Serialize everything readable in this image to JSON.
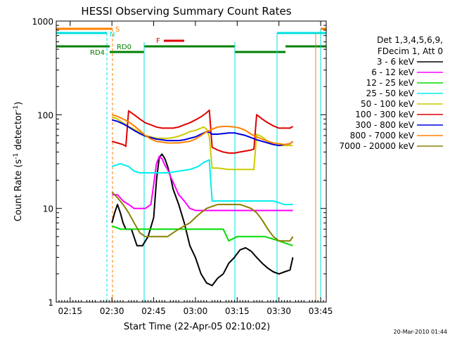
{
  "chart_data": {
    "type": "line",
    "title": "HESSI Observing Summary Count Rates",
    "xlabel": "Start Time (22-Apr-05 02:10:02)",
    "ylabel_main": "Count Rate (s",
    "ylabel_sup1": "-1",
    "ylabel_mid": " detector",
    "ylabel_sup2": "-1",
    "ylabel_end": ")",
    "yscale": "log",
    "ylim": [
      1,
      1000
    ],
    "xlim_minutes": [
      0,
      97
    ],
    "x_unit": "minutes after 02:10:02",
    "x_ticks": [
      {
        "label": "02:15",
        "t": 5
      },
      {
        "label": "02:30",
        "t": 20
      },
      {
        "label": "02:45",
        "t": 35
      },
      {
        "label": "03:00",
        "t": 50
      },
      {
        "label": "03:15",
        "t": 65
      },
      {
        "label": "03:30",
        "t": 80
      },
      {
        "label": "03:45",
        "t": 95
      }
    ],
    "y_ticks": [
      {
        "label": "1",
        "v": 1
      },
      {
        "label": "10",
        "v": 10
      },
      {
        "label": "100",
        "v": 100
      },
      {
        "label": "1000",
        "v": 1000
      }
    ],
    "legend": {
      "header": [
        "Det 1,3,4,5,6,9,",
        "FDecim 1, Att 0"
      ],
      "placement": "right"
    },
    "flags": [
      {
        "label": "S",
        "color": "#ff8000"
      },
      {
        "label": "N",
        "color": "#00e0e0"
      },
      {
        "label": "F",
        "color": "#e00000"
      },
      {
        "label": "RD0",
        "color": "#008000"
      },
      {
        "label": "RD4",
        "color": "#008000"
      }
    ],
    "series": [
      {
        "name": "3 - 6 keV",
        "color": "#000000",
        "points": [
          [
            20,
            7
          ],
          [
            21,
            9
          ],
          [
            22,
            11
          ],
          [
            23,
            9
          ],
          [
            24,
            7
          ],
          [
            25,
            6
          ],
          [
            27,
            6
          ],
          [
            29,
            4
          ],
          [
            31,
            4
          ],
          [
            33,
            5
          ],
          [
            35,
            8
          ],
          [
            36,
            20
          ],
          [
            37,
            35
          ],
          [
            38,
            38
          ],
          [
            39,
            34
          ],
          [
            40,
            28
          ],
          [
            41,
            22
          ],
          [
            42,
            16
          ],
          [
            44,
            11
          ],
          [
            46,
            7
          ],
          [
            48,
            4
          ],
          [
            50,
            3
          ],
          [
            52,
            2
          ],
          [
            54,
            1.6
          ],
          [
            56,
            1.5
          ],
          [
            58,
            1.8
          ],
          [
            60,
            2
          ],
          [
            62,
            2.6
          ],
          [
            64,
            3
          ],
          [
            66,
            3.6
          ],
          [
            68,
            3.8
          ],
          [
            70,
            3.5
          ],
          [
            72,
            3
          ],
          [
            74,
            2.6
          ],
          [
            76,
            2.3
          ],
          [
            78,
            2.1
          ],
          [
            80,
            2
          ],
          [
            82,
            2.1
          ],
          [
            84,
            2.2
          ],
          [
            85,
            3
          ]
        ]
      },
      {
        "name": "6 - 12 keV",
        "color": "#ff00ff",
        "points": [
          [
            20,
            14
          ],
          [
            22,
            14
          ],
          [
            24,
            12
          ],
          [
            26,
            11
          ],
          [
            28,
            10
          ],
          [
            30,
            10
          ],
          [
            32,
            10
          ],
          [
            34,
            11
          ],
          [
            35,
            18
          ],
          [
            36,
            30
          ],
          [
            37,
            36
          ],
          [
            38,
            34
          ],
          [
            39,
            29
          ],
          [
            40,
            26
          ],
          [
            41,
            22
          ],
          [
            42,
            19
          ],
          [
            44,
            14
          ],
          [
            46,
            12
          ],
          [
            48,
            10
          ],
          [
            50,
            9.5
          ],
          [
            55,
            9.5
          ],
          [
            60,
            9.5
          ],
          [
            65,
            9.5
          ],
          [
            70,
            9.5
          ],
          [
            75,
            9.5
          ],
          [
            80,
            9.5
          ],
          [
            85,
            9.5
          ]
        ]
      },
      {
        "name": "12 - 25 keV",
        "color": "#00dd00",
        "points": [
          [
            20,
            6.5
          ],
          [
            23,
            6
          ],
          [
            26,
            6
          ],
          [
            29,
            6
          ],
          [
            32,
            6
          ],
          [
            35,
            6
          ],
          [
            40,
            6
          ],
          [
            45,
            6
          ],
          [
            50,
            6
          ],
          [
            55,
            6
          ],
          [
            60,
            6
          ],
          [
            62,
            4.5
          ],
          [
            65,
            5
          ],
          [
            70,
            5
          ],
          [
            75,
            5
          ],
          [
            80,
            4.5
          ],
          [
            85,
            4
          ]
        ]
      },
      {
        "name": "25 - 50 keV",
        "color": "#00eeee",
        "points": [
          [
            20,
            28
          ],
          [
            23,
            30
          ],
          [
            26,
            28
          ],
          [
            28,
            25
          ],
          [
            30,
            24
          ],
          [
            33,
            24
          ],
          [
            36,
            24
          ],
          [
            40,
            24
          ],
          [
            44,
            25
          ],
          [
            48,
            26
          ],
          [
            51,
            28
          ],
          [
            53,
            31
          ],
          [
            55,
            33
          ],
          [
            56,
            12
          ],
          [
            58,
            12
          ],
          [
            62,
            12
          ],
          [
            66,
            12
          ],
          [
            70,
            12
          ],
          [
            74,
            12
          ],
          [
            78,
            12
          ],
          [
            82,
            11
          ],
          [
            85,
            11
          ]
        ]
      },
      {
        "name": "50 - 100 keV",
        "color": "#cccc00",
        "points": [
          [
            20,
            95
          ],
          [
            22,
            90
          ],
          [
            24,
            82
          ],
          [
            26,
            75
          ],
          [
            28,
            70
          ],
          [
            30,
            65
          ],
          [
            32,
            60
          ],
          [
            34,
            58
          ],
          [
            36,
            56
          ],
          [
            38,
            56
          ],
          [
            40,
            56
          ],
          [
            42,
            57
          ],
          [
            44,
            59
          ],
          [
            46,
            62
          ],
          [
            48,
            66
          ],
          [
            50,
            68
          ],
          [
            52,
            72
          ],
          [
            53,
            74
          ],
          [
            54,
            70
          ],
          [
            55,
            58
          ],
          [
            56,
            27
          ],
          [
            58,
            27
          ],
          [
            62,
            26
          ],
          [
            66,
            26
          ],
          [
            70,
            26
          ],
          [
            71,
            26
          ],
          [
            72,
            62
          ],
          [
            74,
            58
          ],
          [
            76,
            52
          ],
          [
            78,
            48
          ],
          [
            80,
            47
          ],
          [
            82,
            47
          ],
          [
            84,
            47
          ],
          [
            85,
            47
          ]
        ]
      },
      {
        "name": "100 - 300 keV",
        "color": "#e00000",
        "points": [
          [
            20,
            52
          ],
          [
            22,
            50
          ],
          [
            24,
            48
          ],
          [
            25,
            46
          ],
          [
            26,
            110
          ],
          [
            28,
            100
          ],
          [
            30,
            90
          ],
          [
            32,
            82
          ],
          [
            34,
            78
          ],
          [
            36,
            74
          ],
          [
            38,
            72
          ],
          [
            40,
            72
          ],
          [
            42,
            72
          ],
          [
            44,
            74
          ],
          [
            46,
            78
          ],
          [
            48,
            82
          ],
          [
            50,
            88
          ],
          [
            52,
            95
          ],
          [
            54,
            105
          ],
          [
            55,
            112
          ],
          [
            56,
            45
          ],
          [
            58,
            42
          ],
          [
            60,
            40
          ],
          [
            62,
            39
          ],
          [
            64,
            39
          ],
          [
            66,
            40
          ],
          [
            68,
            41
          ],
          [
            70,
            42
          ],
          [
            71,
            43
          ],
          [
            72,
            100
          ],
          [
            74,
            90
          ],
          [
            76,
            82
          ],
          [
            78,
            76
          ],
          [
            80,
            72
          ],
          [
            82,
            72
          ],
          [
            84,
            72
          ],
          [
            85,
            75
          ]
        ]
      },
      {
        "name": "300 - 800 keV",
        "color": "#0000e0",
        "points": [
          [
            20,
            88
          ],
          [
            22,
            85
          ],
          [
            24,
            80
          ],
          [
            26,
            74
          ],
          [
            28,
            68
          ],
          [
            30,
            63
          ],
          [
            32,
            59
          ],
          [
            34,
            57
          ],
          [
            36,
            55
          ],
          [
            38,
            54
          ],
          [
            40,
            53
          ],
          [
            42,
            53
          ],
          [
            44,
            53
          ],
          [
            46,
            54
          ],
          [
            48,
            56
          ],
          [
            50,
            58
          ],
          [
            52,
            62
          ],
          [
            54,
            66
          ],
          [
            55,
            65
          ],
          [
            56,
            62
          ],
          [
            58,
            62
          ],
          [
            60,
            63
          ],
          [
            62,
            64
          ],
          [
            64,
            64
          ],
          [
            66,
            62
          ],
          [
            68,
            60
          ],
          [
            70,
            57
          ],
          [
            72,
            54
          ],
          [
            74,
            52
          ],
          [
            76,
            50
          ],
          [
            78,
            48
          ],
          [
            80,
            47
          ],
          [
            82,
            48
          ],
          [
            84,
            49
          ],
          [
            85,
            52
          ]
        ]
      },
      {
        "name": "800 - 7000 keV",
        "color": "#ff8000",
        "points": [
          [
            20,
            100
          ],
          [
            22,
            96
          ],
          [
            24,
            90
          ],
          [
            26,
            84
          ],
          [
            28,
            76
          ],
          [
            30,
            68
          ],
          [
            32,
            60
          ],
          [
            34,
            55
          ],
          [
            36,
            52
          ],
          [
            38,
            51
          ],
          [
            40,
            50
          ],
          [
            42,
            50
          ],
          [
            44,
            50
          ],
          [
            46,
            51
          ],
          [
            48,
            52
          ],
          [
            50,
            55
          ],
          [
            52,
            60
          ],
          [
            54,
            66
          ],
          [
            56,
            70
          ],
          [
            58,
            74
          ],
          [
            60,
            75
          ],
          [
            62,
            75
          ],
          [
            64,
            74
          ],
          [
            66,
            72
          ],
          [
            68,
            68
          ],
          [
            70,
            62
          ],
          [
            72,
            58
          ],
          [
            74,
            55
          ],
          [
            76,
            52
          ],
          [
            78,
            50
          ],
          [
            80,
            49
          ],
          [
            82,
            48
          ],
          [
            84,
            49
          ],
          [
            85,
            52
          ]
        ]
      },
      {
        "name": "7000 - 20000 keV",
        "color": "#8b8000",
        "points": [
          [
            20,
            15
          ],
          [
            22,
            13
          ],
          [
            24,
            11
          ],
          [
            26,
            9
          ],
          [
            28,
            7
          ],
          [
            30,
            5.5
          ],
          [
            32,
            5
          ],
          [
            34,
            5
          ],
          [
            36,
            5
          ],
          [
            38,
            5
          ],
          [
            40,
            5
          ],
          [
            42,
            5.5
          ],
          [
            44,
            6
          ],
          [
            46,
            6.5
          ],
          [
            48,
            7
          ],
          [
            50,
            8
          ],
          [
            52,
            9
          ],
          [
            54,
            10
          ],
          [
            56,
            10.5
          ],
          [
            58,
            11
          ],
          [
            60,
            11
          ],
          [
            62,
            11
          ],
          [
            64,
            11
          ],
          [
            66,
            11
          ],
          [
            68,
            10.5
          ],
          [
            70,
            10
          ],
          [
            72,
            9
          ],
          [
            74,
            7.5
          ],
          [
            76,
            6
          ],
          [
            78,
            5
          ],
          [
            80,
            4.5
          ],
          [
            82,
            4.5
          ],
          [
            84,
            4.5
          ],
          [
            85,
            5
          ]
        ]
      }
    ]
  },
  "footer_timestamp": "20-Mar-2010 01:44"
}
